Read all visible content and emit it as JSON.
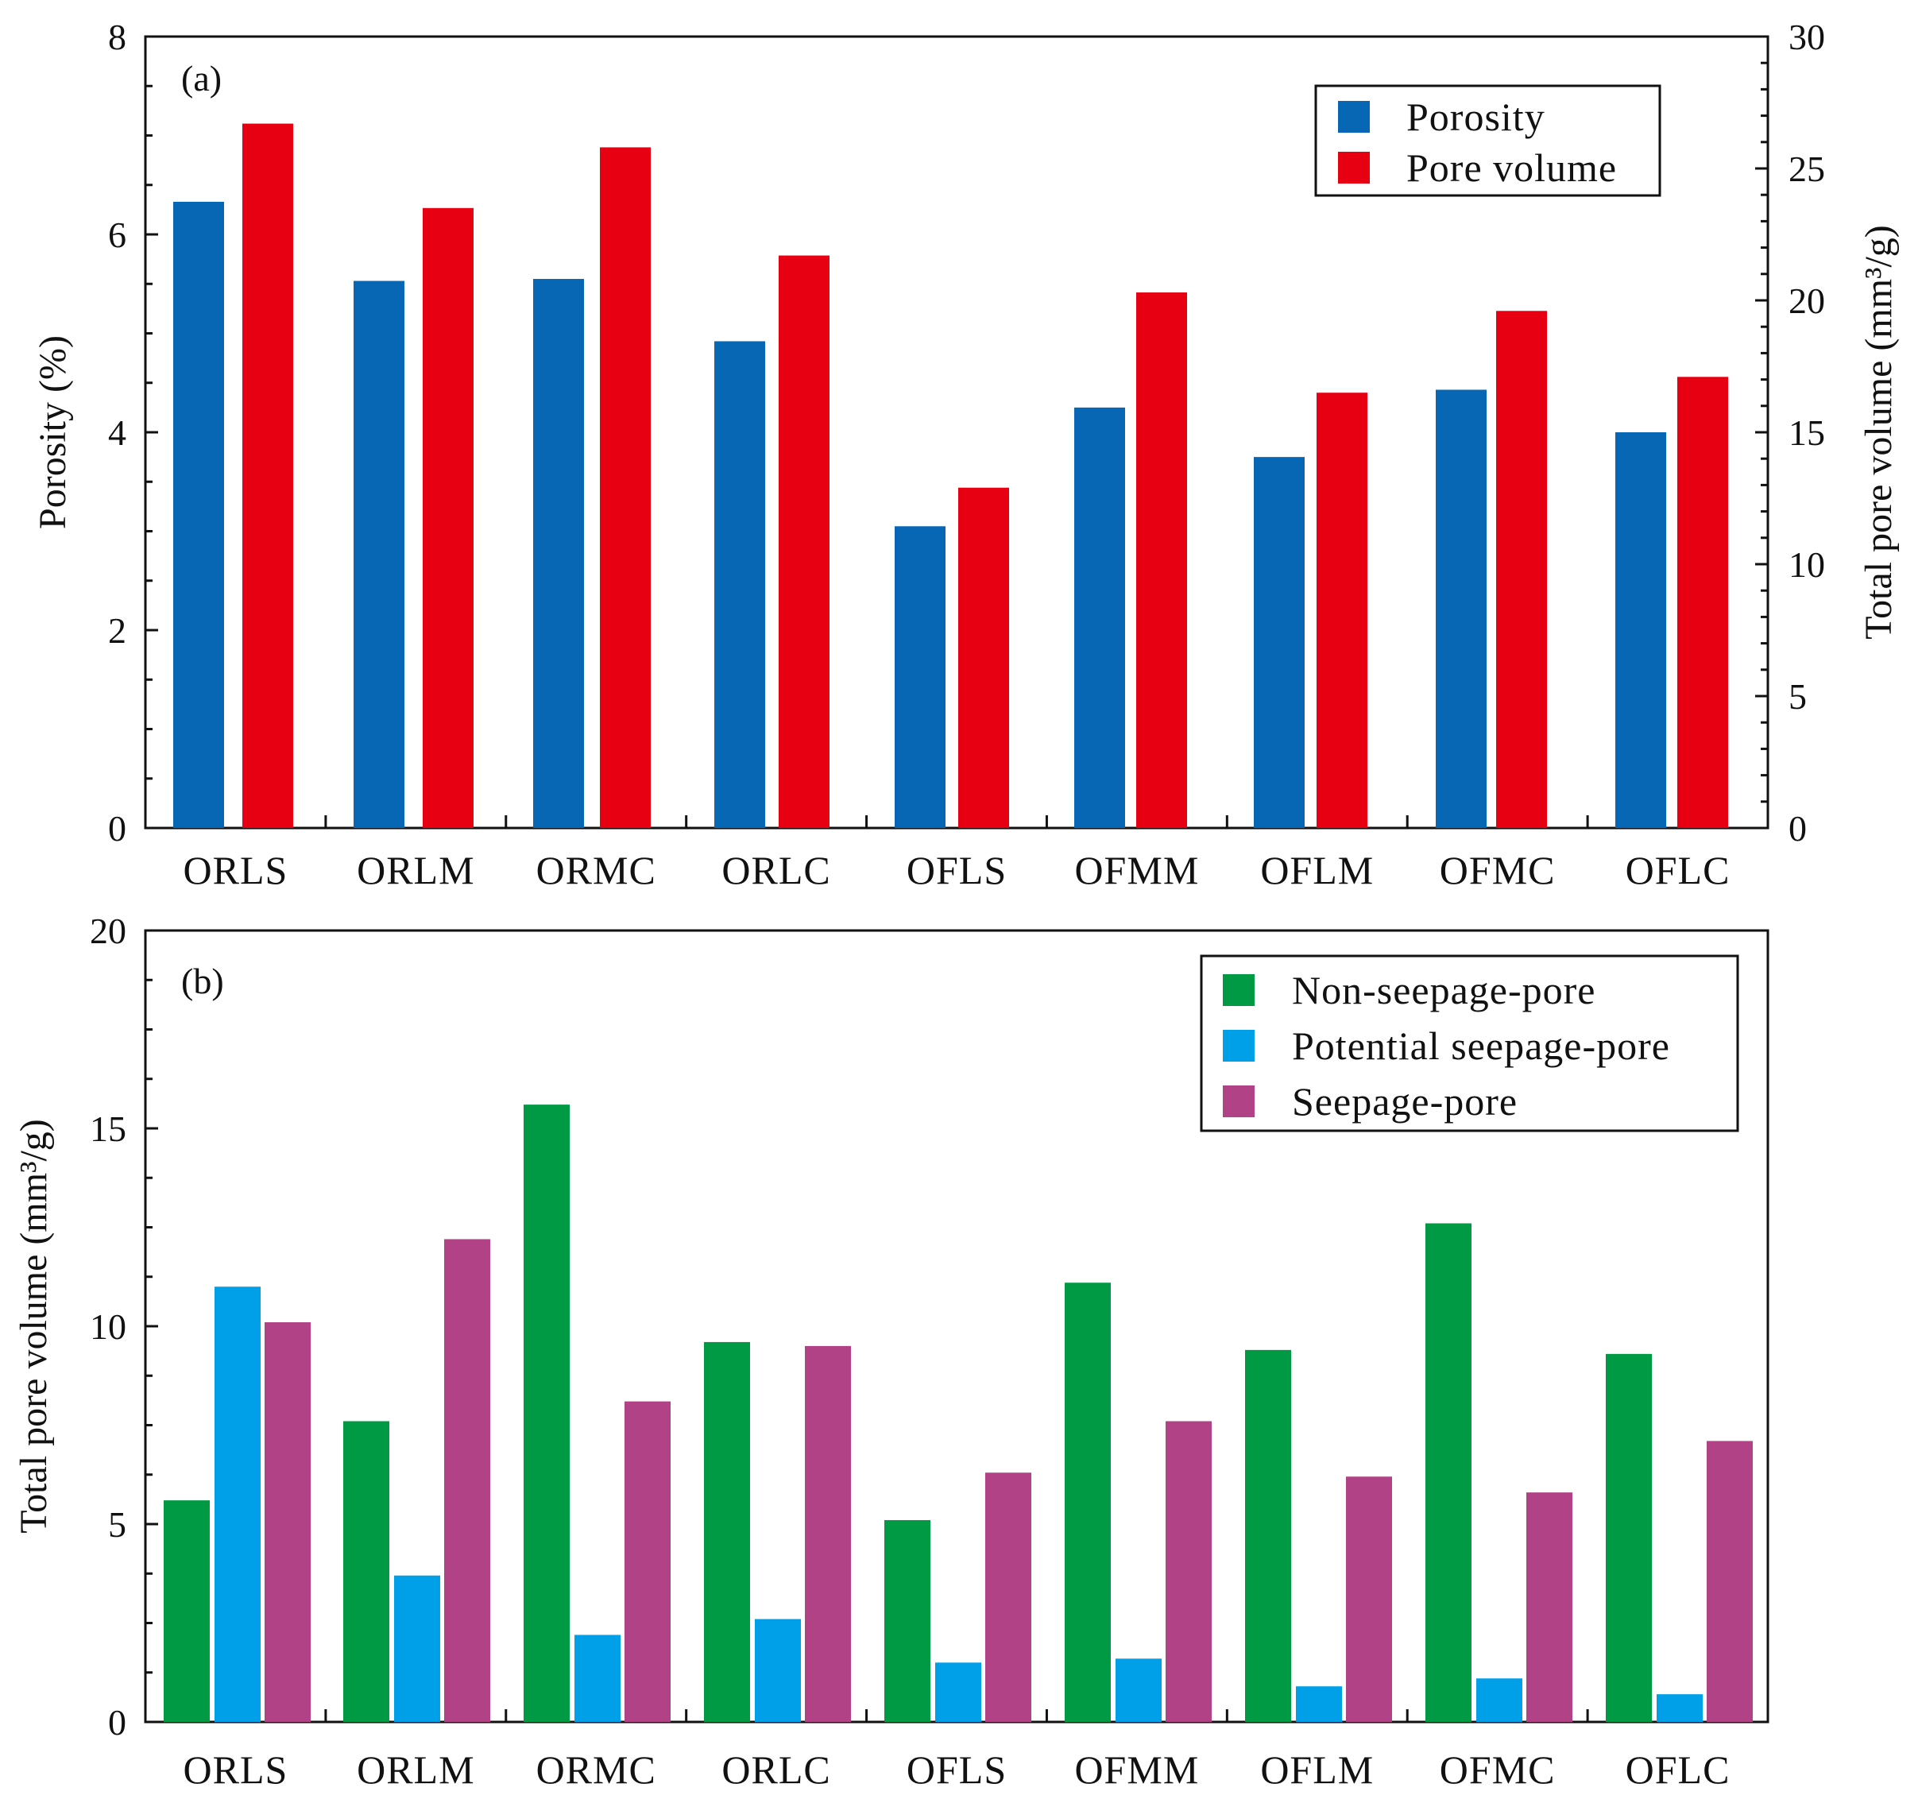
{
  "chart_data": [
    {
      "panel_label": "(a)",
      "type": "bar",
      "categories": [
        "ORLS",
        "ORLM",
        "ORMC",
        "ORLC",
        "OFLS",
        "OFMM",
        "OFLM",
        "OFMC",
        "OFLC"
      ],
      "series": [
        {
          "name": "Porosity",
          "axis": "left",
          "color": "#0767b4",
          "values": [
            6.33,
            5.53,
            5.55,
            4.92,
            3.05,
            4.25,
            3.75,
            4.43,
            4.0
          ]
        },
        {
          "name": "Pore volume",
          "axis": "right",
          "color": "#e60012",
          "values": [
            26.7,
            23.5,
            25.8,
            21.7,
            12.9,
            20.3,
            16.5,
            19.6,
            17.1
          ]
        }
      ],
      "ylabel": "Porosity (%)",
      "ylim": [
        0,
        8
      ],
      "yticks": [
        "0",
        "2",
        "4",
        "6",
        "8"
      ],
      "y2label": "Total pore volume (mm³/g)",
      "y2lim": [
        0,
        30
      ],
      "y2ticks": [
        "0",
        "5",
        "10",
        "15",
        "20",
        "25",
        "30"
      ],
      "legend": {
        "position": "top-right",
        "entries": [
          "Porosity",
          "Pore volume"
        ]
      }
    },
    {
      "panel_label": "(b)",
      "type": "bar",
      "categories": [
        "ORLS",
        "ORLM",
        "ORMC",
        "ORLC",
        "OFLS",
        "OFMM",
        "OFLM",
        "OFMC",
        "OFLC"
      ],
      "series": [
        {
          "name": "Non-seepage-pore",
          "color": "#009944",
          "values": [
            5.6,
            7.6,
            15.6,
            9.6,
            5.1,
            11.1,
            9.4,
            12.6,
            9.3
          ]
        },
        {
          "name": "Potential seepage-pore",
          "color": "#00a0e9",
          "values": [
            11.0,
            3.7,
            2.2,
            2.6,
            1.5,
            1.6,
            0.9,
            1.1,
            0.7
          ]
        },
        {
          "name": "Seepage-pore",
          "color": "#b04285",
          "values": [
            10.1,
            12.2,
            8.1,
            9.5,
            6.3,
            7.6,
            6.2,
            5.8,
            7.1
          ]
        }
      ],
      "ylabel": "Total pore volume (mm³/g)",
      "ylim": [
        0,
        20
      ],
      "yticks": [
        "0",
        "5",
        "10",
        "15",
        "20"
      ],
      "legend": {
        "position": "top-right",
        "entries": [
          "Non-seepage-pore",
          "Potential seepage-pore",
          "Seepage-pore"
        ]
      }
    }
  ]
}
